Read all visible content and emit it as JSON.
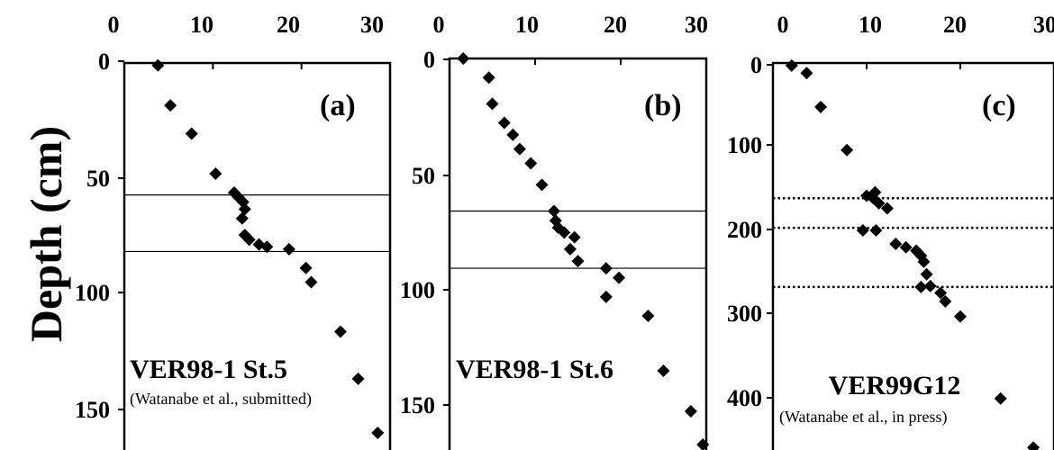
{
  "ylabel": "Depth (cm)",
  "chart_data": [
    {
      "type": "scatter",
      "panel": "(a)",
      "station": "VER98-1 St.5",
      "reference": "(Watanabe et al., submitted)",
      "xlim": [
        0,
        30
      ],
      "ylim": [
        0,
        165
      ],
      "x_ticks": [
        "0",
        "10",
        "20",
        "30"
      ],
      "y_ticks": [
        "0",
        "50",
        "100",
        "150"
      ],
      "hlines": [
        56,
        80
      ],
      "hline_style": "solid",
      "points": [
        {
          "x": 3.8,
          "y": 1
        },
        {
          "x": 5.2,
          "y": 18
        },
        {
          "x": 7.6,
          "y": 30
        },
        {
          "x": 10.3,
          "y": 47
        },
        {
          "x": 12.4,
          "y": 55
        },
        {
          "x": 12.9,
          "y": 57
        },
        {
          "x": 13.4,
          "y": 59
        },
        {
          "x": 13.6,
          "y": 62
        },
        {
          "x": 13.3,
          "y": 66
        },
        {
          "x": 13.6,
          "y": 73
        },
        {
          "x": 14.1,
          "y": 75
        },
        {
          "x": 15.2,
          "y": 77
        },
        {
          "x": 16.1,
          "y": 78
        },
        {
          "x": 18.6,
          "y": 79
        },
        {
          "x": 20.5,
          "y": 87
        },
        {
          "x": 21.1,
          "y": 93
        },
        {
          "x": 24.4,
          "y": 114
        },
        {
          "x": 26.4,
          "y": 134
        },
        {
          "x": 28.6,
          "y": 157
        }
      ]
    },
    {
      "type": "scatter",
      "panel": "(b)",
      "station": "VER98-1 St.6",
      "reference": "",
      "xlim": [
        0,
        30
      ],
      "ylim": [
        0,
        165
      ],
      "x_ticks": [
        "0",
        "10",
        "20",
        "30"
      ],
      "y_ticks": [
        "0",
        "50",
        "100",
        "150"
      ],
      "hlines": [
        64,
        88
      ],
      "hline_style": "solid",
      "points": [
        {
          "x": 1.6,
          "y": 0
        },
        {
          "x": 4.6,
          "y": 8
        },
        {
          "x": 5.0,
          "y": 19
        },
        {
          "x": 6.4,
          "y": 27
        },
        {
          "x": 7.4,
          "y": 32
        },
        {
          "x": 8.2,
          "y": 38
        },
        {
          "x": 9.5,
          "y": 44
        },
        {
          "x": 10.8,
          "y": 53
        },
        {
          "x": 12.2,
          "y": 64
        },
        {
          "x": 12.4,
          "y": 68
        },
        {
          "x": 12.7,
          "y": 71
        },
        {
          "x": 13.4,
          "y": 73
        },
        {
          "x": 14.6,
          "y": 75
        },
        {
          "x": 14.1,
          "y": 80
        },
        {
          "x": 15.0,
          "y": 85
        },
        {
          "x": 18.3,
          "y": 88
        },
        {
          "x": 19.8,
          "y": 92
        },
        {
          "x": 18.3,
          "y": 100
        },
        {
          "x": 23.2,
          "y": 108
        },
        {
          "x": 25.0,
          "y": 131
        },
        {
          "x": 28.2,
          "y": 148
        },
        {
          "x": 29.6,
          "y": 162
        }
      ]
    },
    {
      "type": "scatter",
      "panel": "(c)",
      "station": "VER99G12",
      "reference": "(Watanabe et al., in press)",
      "xlim": [
        0,
        30
      ],
      "ylim": [
        0,
        460
      ],
      "x_ticks": [
        "0",
        "10",
        "20",
        "30"
      ],
      "y_ticks": [
        "0",
        "100",
        "200",
        "300",
        "400"
      ],
      "hlines": [
        160,
        195,
        265
      ],
      "hline_style": "dotted",
      "points": [
        {
          "x": 2.0,
          "y": 3
        },
        {
          "x": 3.6,
          "y": 12
        },
        {
          "x": 5.1,
          "y": 52
        },
        {
          "x": 7.9,
          "y": 103
        },
        {
          "x": 10.0,
          "y": 157
        },
        {
          "x": 10.7,
          "y": 160
        },
        {
          "x": 11.3,
          "y": 166
        },
        {
          "x": 12.2,
          "y": 172
        },
        {
          "x": 10.9,
          "y": 153
        },
        {
          "x": 9.6,
          "y": 198
        },
        {
          "x": 11.0,
          "y": 198
        },
        {
          "x": 13.1,
          "y": 214
        },
        {
          "x": 14.2,
          "y": 218
        },
        {
          "x": 15.3,
          "y": 222
        },
        {
          "x": 15.8,
          "y": 228
        },
        {
          "x": 16.1,
          "y": 235
        },
        {
          "x": 16.4,
          "y": 250
        },
        {
          "x": 15.8,
          "y": 265
        },
        {
          "x": 16.8,
          "y": 264
        },
        {
          "x": 17.9,
          "y": 272
        },
        {
          "x": 18.4,
          "y": 282
        },
        {
          "x": 20.0,
          "y": 300
        },
        {
          "x": 24.3,
          "y": 397
        },
        {
          "x": 27.8,
          "y": 455
        }
      ]
    }
  ]
}
